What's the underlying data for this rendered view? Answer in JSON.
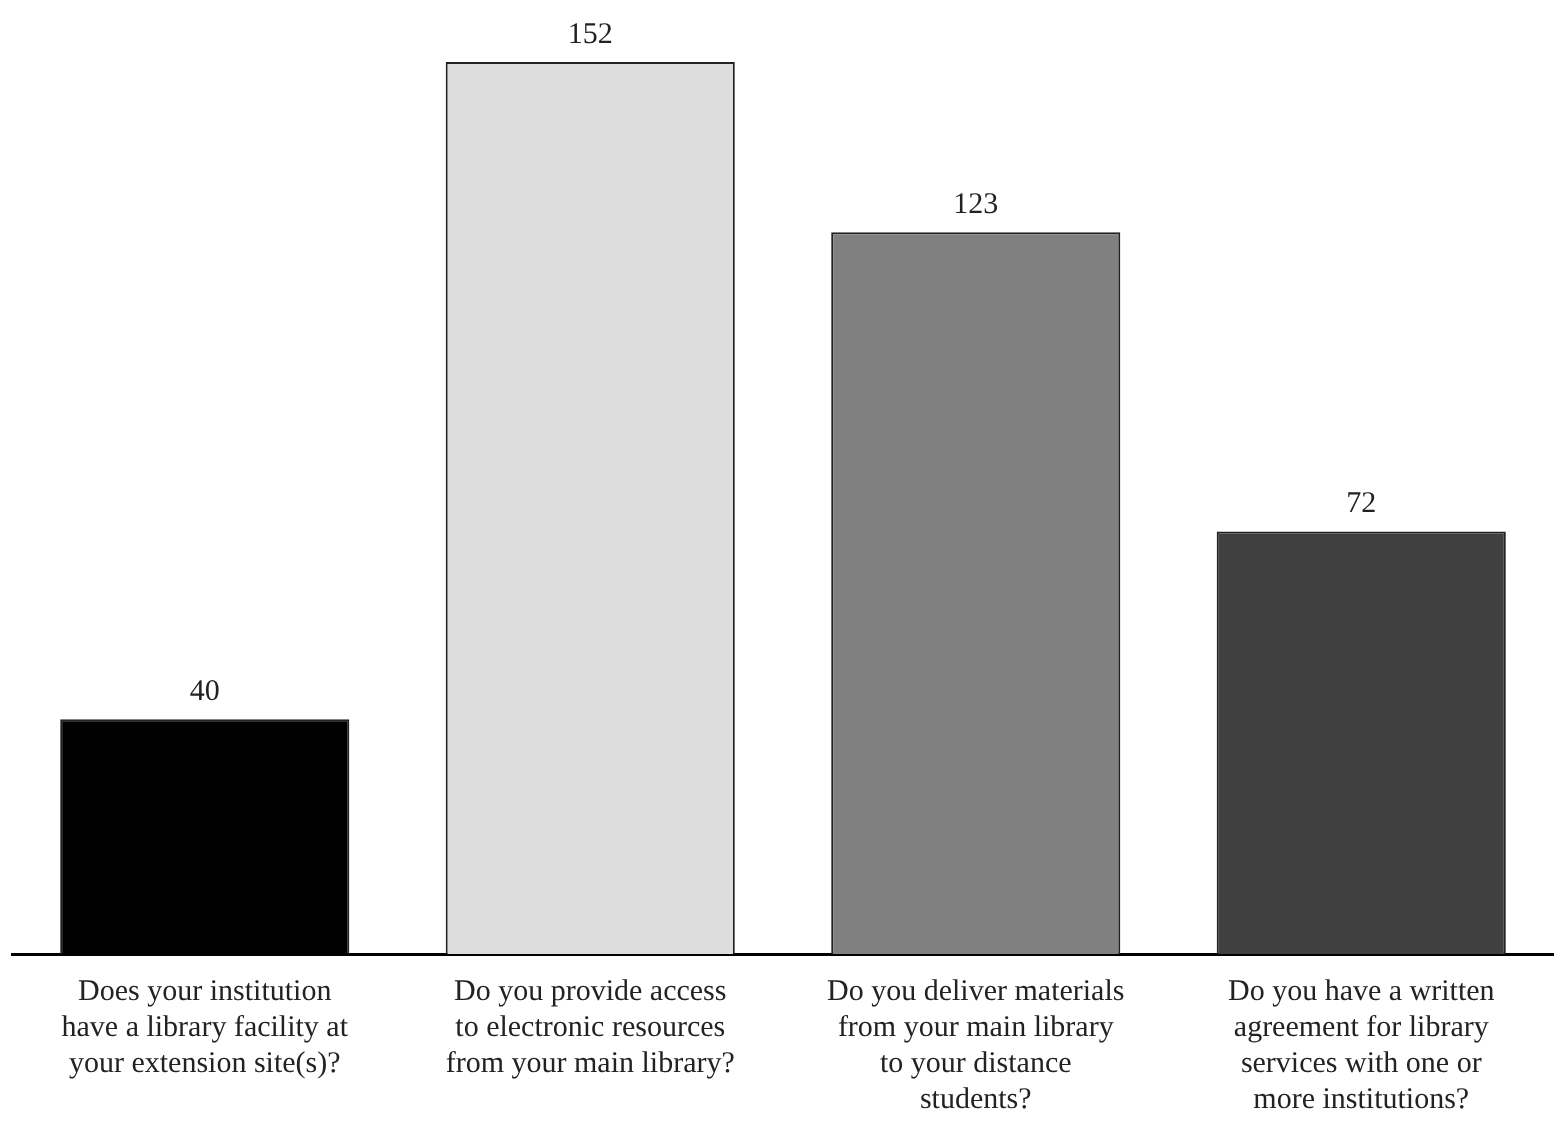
{
  "chart_data": {
    "type": "bar",
    "categories": [
      "Does your institution have a library facility at your extension site(s)?",
      "Do you provide access to electronic resources from your main library?",
      "Do you deliver materials from your main library to your distance students?",
      "Do you have a written agreement for library services with one or more institutions?"
    ],
    "values": [
      40,
      152,
      123,
      72
    ],
    "colors": [
      "#000000",
      "#dddddd",
      "#808080",
      "#404040"
    ],
    "data_labels": true,
    "grid": false,
    "legend": false
  }
}
